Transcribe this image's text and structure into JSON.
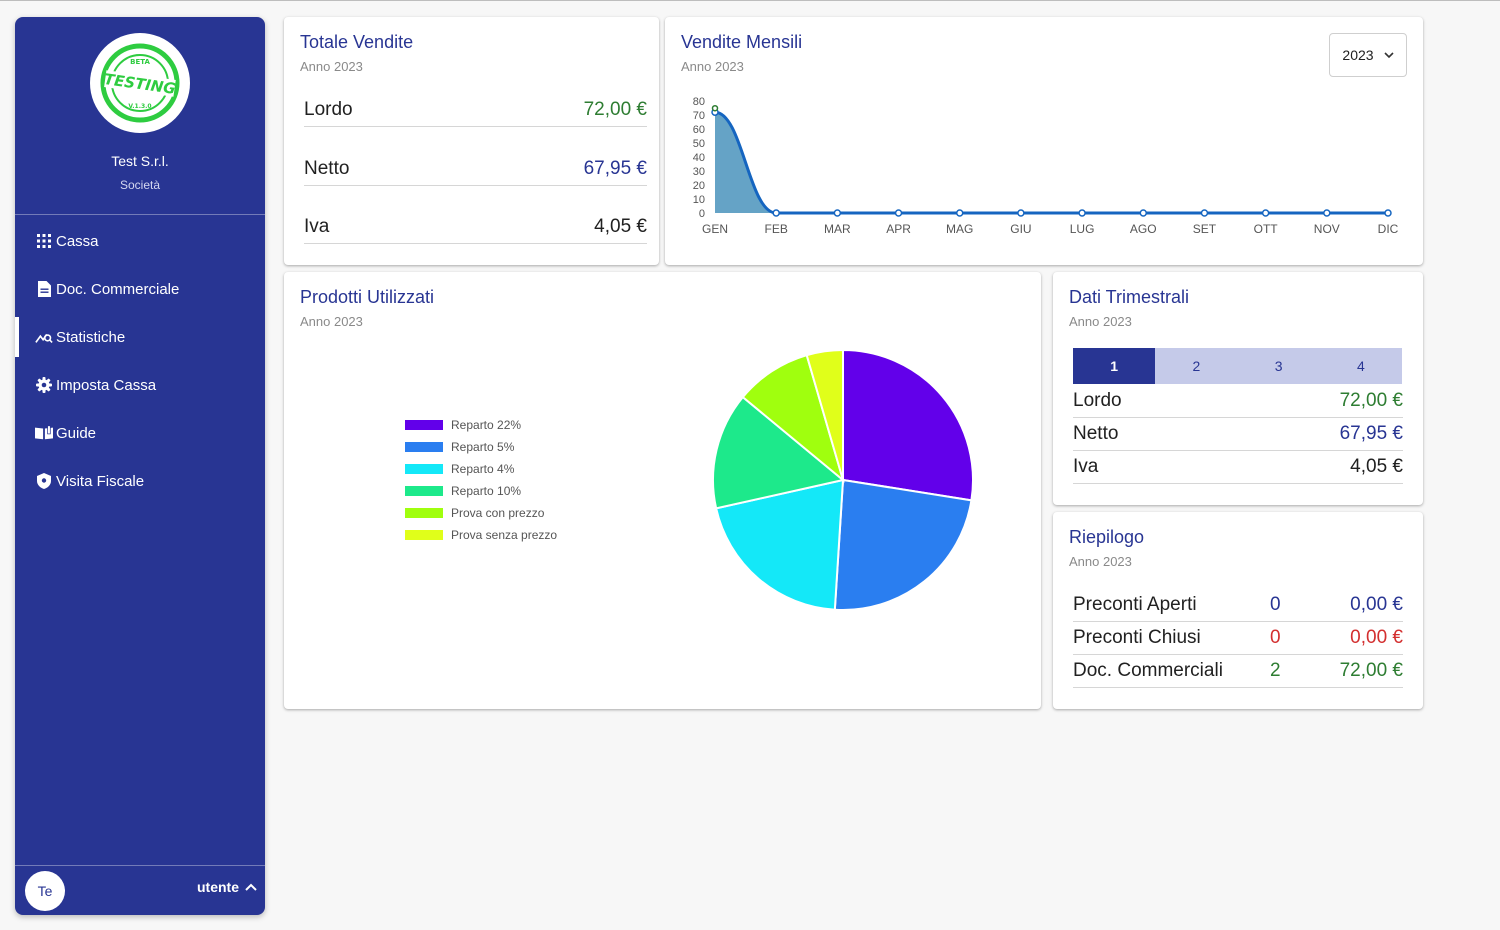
{
  "sidebar": {
    "logo_text": {
      "top": "BETA",
      "main": "TESTING",
      "bottom": "V.1.3.0"
    },
    "company_name": "Test S.r.l.",
    "company_type": "Società",
    "nav": [
      {
        "label": "Cassa",
        "icon": "grid-icon",
        "active": false
      },
      {
        "label": "Doc. Commerciale",
        "icon": "document-icon",
        "active": false
      },
      {
        "label": "Statistiche",
        "icon": "chart-search-icon",
        "active": true
      },
      {
        "label": "Imposta Cassa",
        "icon": "gear-icon",
        "active": false
      },
      {
        "label": "Guide",
        "icon": "book-icon",
        "active": false
      },
      {
        "label": "Visita Fiscale",
        "icon": "shield-icon",
        "active": false
      }
    ],
    "avatar_initials": "Te",
    "user_label": "utente"
  },
  "totale_vendite": {
    "title": "Totale Vendite",
    "subtitle": "Anno 2023",
    "rows": [
      {
        "label": "Lordo",
        "value": "72,00 €"
      },
      {
        "label": "Netto",
        "value": "67,95 €"
      },
      {
        "label": "Iva",
        "value": "4,05 €"
      }
    ]
  },
  "vendite_mensili": {
    "title": "Vendite Mensili",
    "subtitle": "Anno 2023",
    "year_selected": "2023"
  },
  "prodotti_utilizzati": {
    "title": "Prodotti Utilizzati",
    "subtitle": "Anno 2023"
  },
  "dati_trimestrali": {
    "title": "Dati Trimestrali",
    "tabs": [
      "1",
      "2",
      "3",
      "4"
    ],
    "active_tab": 0,
    "rows": [
      {
        "label": "Lordo",
        "value": "72,00 €"
      },
      {
        "label": "Netto",
        "value": "67,95 €"
      },
      {
        "label": "Iva",
        "value": "4,05 €"
      }
    ],
    "subtitle": "Anno 2023"
  },
  "riepilogo": {
    "title": "Riepilogo",
    "subtitle": "Anno 2023",
    "rows": [
      {
        "label": "Preconti Aperti",
        "count": "0",
        "amount": "0,00 €"
      },
      {
        "label": "Preconti Chiusi",
        "count": "0",
        "amount": "0,00 €"
      },
      {
        "label": "Doc. Commerciali",
        "count": "2",
        "amount": "72,00 €"
      }
    ]
  },
  "colors": {
    "primary": "#283593",
    "green": "#2e7d32",
    "red": "#d32f2f",
    "line": "#1565c0",
    "area": "#5d9ec3"
  },
  "chart_data": [
    {
      "type": "area",
      "categories": [
        "GEN",
        "FEB",
        "MAR",
        "APR",
        "MAG",
        "GIU",
        "LUG",
        "AGO",
        "SET",
        "OTT",
        "NOV",
        "DIC"
      ],
      "values": [
        72,
        0,
        0,
        0,
        0,
        0,
        0,
        0,
        0,
        0,
        0,
        0
      ],
      "yticks": [
        0,
        10,
        20,
        30,
        40,
        50,
        60,
        70,
        80
      ],
      "ylim": [
        0,
        80
      ],
      "grid": false
    },
    {
      "type": "pie",
      "labels": [
        "Reparto 22%",
        "Reparto 5%",
        "Reparto 4%",
        "Reparto 10%",
        "Prova con prezzo",
        "Prova senza prezzo"
      ],
      "values": [
        27.5,
        23.5,
        20.5,
        14.5,
        9.5,
        4.5
      ],
      "colors": [
        "#6200ea",
        "#2a7ef0",
        "#14e8f8",
        "#1de98b",
        "#a0ff0e",
        "#e0ff1a"
      ],
      "legend": "left"
    }
  ]
}
